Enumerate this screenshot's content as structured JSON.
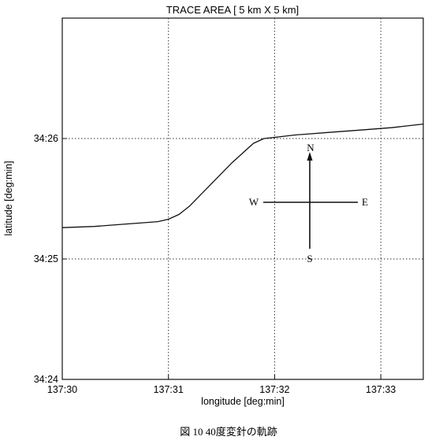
{
  "chart_data": {
    "type": "line",
    "title": "TRACE AREA [ 5 km X 5 km]",
    "xlabel": "longitude [deg:min]",
    "ylabel": "latitude [deg:min]",
    "caption": "図 10 40度変針の軌跡",
    "x_unit": "minutes of longitude past 137°00'",
    "y_unit": "minutes of latitude past 34°00'",
    "xlim": [
      30.0,
      33.4
    ],
    "ylim": [
      24.0,
      27.0
    ],
    "xticks": [
      {
        "value": 30,
        "label": "137:30"
      },
      {
        "value": 31,
        "label": "137:31"
      },
      {
        "value": 32,
        "label": "137:32"
      },
      {
        "value": 33,
        "label": "137:33"
      }
    ],
    "yticks": [
      {
        "value": 24,
        "label": "34:24"
      },
      {
        "value": 25,
        "label": "34:25"
      },
      {
        "value": 26,
        "label": "34:26"
      }
    ],
    "grid": true,
    "grid_style": "dotted",
    "series": [
      {
        "name": "",
        "x": [
          30.0,
          30.3,
          30.6,
          30.9,
          31.0,
          31.1,
          31.2,
          31.4,
          31.6,
          31.8,
          31.9,
          32.0,
          32.2,
          32.5,
          32.8,
          33.1,
          33.4
        ],
        "y": [
          25.26,
          25.27,
          25.29,
          25.31,
          25.33,
          25.37,
          25.44,
          25.62,
          25.8,
          25.96,
          26.0,
          26.01,
          26.03,
          26.05,
          26.07,
          26.09,
          26.12
        ]
      }
    ],
    "compass": {
      "north": "N",
      "south": "S",
      "east": "E",
      "west": "W"
    }
  }
}
